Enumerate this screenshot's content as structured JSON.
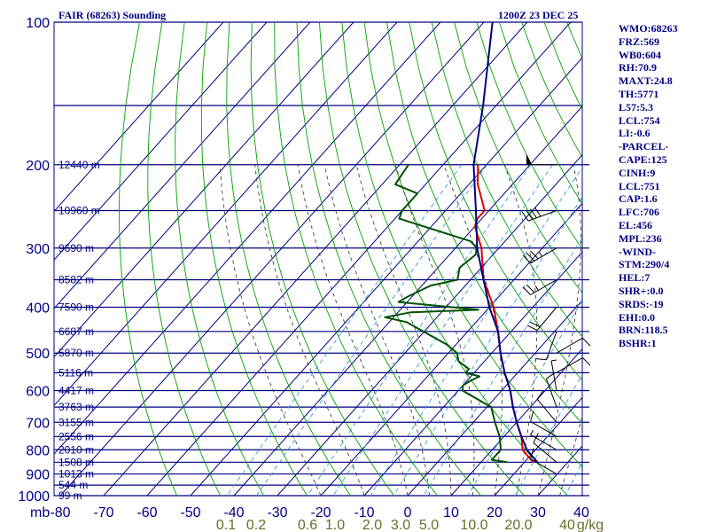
{
  "header": {
    "left_title": "FAIR (68263) Sounding",
    "right_title": "1200Z 23 DEC 25"
  },
  "stats": [
    "WMO:68263",
    "FRZ:569",
    "WB0:604",
    "RH:70.9",
    "MAXT:24.8",
    "TH:5771",
    "L57:5.3",
    "LCL:754",
    "LI:-0.6",
    "-PARCEL-",
    "CAPE:125",
    "CINH:9",
    "LCL:751",
    "CAP:1.6",
    "LFC:706",
    "EL:456",
    "MPL:236",
    "-WIND-",
    "STM:290/4",
    "HEL:7",
    "SHR+:0.0",
    "SRDS:-19",
    "EHI:0.0",
    "BRN:118.5",
    "BSHR:1"
  ],
  "colors": {
    "grid": "#000080",
    "dry_adiabat": "#00a000",
    "moist_adiabat": "#404040",
    "mixing_ratio": "#3399dd",
    "temperature": "#e00000",
    "dewpoint": "#005000",
    "parcel": "#000080",
    "wind_barb": "#000000",
    "mixing_label": "#6b6b2a"
  },
  "chart_data": {
    "type": "skew-t",
    "title": "FAIR (68263) Sounding",
    "ylabel": "mb",
    "pressure_levels": [
      100,
      200,
      300,
      400,
      500,
      600,
      700,
      800,
      900,
      1000
    ],
    "pressure_labels": [
      "100",
      "200",
      "300",
      "400",
      "500",
      "600",
      "700",
      "800",
      "900",
      "1000"
    ],
    "temperature_ticks": [
      -80,
      -70,
      -60,
      -50,
      -40,
      -30,
      -20,
      -10,
      0,
      10,
      20,
      30,
      40
    ],
    "temperature_tick_labels": [
      "-80",
      "-70",
      "-60",
      "-50",
      "-40",
      "-30",
      "-20",
      "-10",
      "0",
      "10",
      "20",
      "30",
      "40"
    ],
    "ylim": [
      1000,
      100
    ],
    "xlim": [
      -80,
      40
    ],
    "height_labels": [
      {
        "p": 200,
        "text": "12440 m"
      },
      {
        "p": 250,
        "text": "10960 m"
      },
      {
        "p": 300,
        "text": "9690 m"
      },
      {
        "p": 350,
        "text": "8582 m"
      },
      {
        "p": 400,
        "text": "7590 m"
      },
      {
        "p": 450,
        "text": "6687 m"
      },
      {
        "p": 500,
        "text": "5870 m"
      },
      {
        "p": 550,
        "text": "5116 m"
      },
      {
        "p": 600,
        "text": "4417 m"
      },
      {
        "p": 650,
        "text": "3763 m"
      },
      {
        "p": 700,
        "text": "3155 m"
      },
      {
        "p": 750,
        "text": "2556 m"
      },
      {
        "p": 800,
        "text": "2010 m"
      },
      {
        "p": 850,
        "text": "1508 m"
      },
      {
        "p": 900,
        "text": "1013 m"
      },
      {
        "p": 950,
        "text": "544 m"
      },
      {
        "p": 1000,
        "text": "99 m"
      }
    ],
    "mixing_ratio_labels": [
      "0.1",
      "0.2",
      "0.6",
      "1.0",
      "2.0",
      "3.0",
      "5.0",
      "10.0",
      "20.0",
      "40",
      "g/kg"
    ],
    "series": [
      {
        "name": "temperature",
        "points": [
          [
            200,
            -52
          ],
          [
            220,
            -48
          ],
          [
            250,
            -41
          ],
          [
            260,
            -41
          ],
          [
            270,
            -40
          ],
          [
            300,
            -34
          ],
          [
            350,
            -27
          ],
          [
            400,
            -19
          ],
          [
            450,
            -13
          ],
          [
            500,
            -8
          ],
          [
            550,
            -3
          ],
          [
            600,
            2
          ],
          [
            650,
            6
          ],
          [
            700,
            10
          ],
          [
            750,
            14
          ],
          [
            800,
            17
          ],
          [
            850,
            22
          ]
        ]
      },
      {
        "name": "dewpoint",
        "points": [
          [
            200,
            -68
          ],
          [
            220,
            -67
          ],
          [
            230,
            -60
          ],
          [
            250,
            -60
          ],
          [
            260,
            -59
          ],
          [
            290,
            -38
          ],
          [
            300,
            -35
          ],
          [
            310,
            -34
          ],
          [
            330,
            -35
          ],
          [
            350,
            -33
          ],
          [
            360,
            -38
          ],
          [
            380,
            -41
          ],
          [
            390,
            -42
          ],
          [
            405,
            -22
          ],
          [
            410,
            -37
          ],
          [
            420,
            -42
          ],
          [
            430,
            -36
          ],
          [
            480,
            -22
          ],
          [
            500,
            -18
          ],
          [
            520,
            -16
          ],
          [
            540,
            -12
          ],
          [
            550,
            -12
          ],
          [
            560,
            -8
          ],
          [
            570,
            -9
          ],
          [
            585,
            -10
          ],
          [
            600,
            -9
          ],
          [
            650,
            1
          ],
          [
            700,
            5
          ],
          [
            750,
            9
          ],
          [
            800,
            12
          ],
          [
            840,
            12
          ],
          [
            850,
            16
          ]
        ]
      },
      {
        "name": "parcel",
        "points": [
          [
            100,
            -78
          ],
          [
            150,
            -63
          ],
          [
            200,
            -53
          ],
          [
            250,
            -43
          ],
          [
            300,
            -35
          ],
          [
            350,
            -27
          ],
          [
            400,
            -20
          ],
          [
            450,
            -13
          ],
          [
            500,
            -8
          ],
          [
            550,
            -3
          ],
          [
            600,
            2
          ],
          [
            650,
            6
          ],
          [
            700,
            10
          ],
          [
            750,
            14
          ],
          [
            800,
            18
          ],
          [
            850,
            23
          ]
        ]
      }
    ],
    "wind_barbs": [
      {
        "p": 200,
        "dir": 270,
        "speed": 50
      },
      {
        "p": 250,
        "dir": 250,
        "speed": 40
      },
      {
        "p": 300,
        "dir": 240,
        "speed": 35
      },
      {
        "p": 350,
        "dir": 240,
        "speed": 25
      },
      {
        "p": 400,
        "dir": 220,
        "speed": 20
      },
      {
        "p": 450,
        "dir": 200,
        "speed": 10
      },
      {
        "p": 500,
        "dir": 60,
        "speed": 10
      },
      {
        "p": 550,
        "dir": 60,
        "speed": 10
      },
      {
        "p": 600,
        "dir": 350,
        "speed": 5
      },
      {
        "p": 650,
        "dir": 340,
        "speed": 10
      },
      {
        "p": 700,
        "dir": 320,
        "speed": 10
      },
      {
        "p": 750,
        "dir": 300,
        "speed": 10
      },
      {
        "p": 800,
        "dir": 300,
        "speed": 5
      },
      {
        "p": 850,
        "dir": 310,
        "speed": 10
      },
      {
        "p": 900,
        "dir": 300,
        "speed": 10
      }
    ]
  }
}
